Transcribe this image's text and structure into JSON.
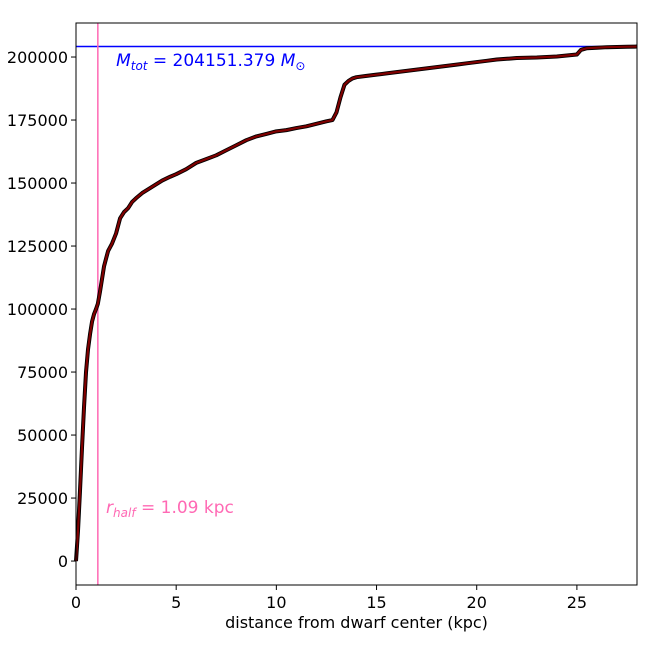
{
  "chart_data": {
    "type": "line",
    "title": "",
    "xlabel": "distance from dwarf center (kpc)",
    "ylabel": "",
    "xlim": [
      0,
      28
    ],
    "ylim": [
      -9500,
      213500
    ],
    "xticks": [
      0,
      5,
      10,
      15,
      20,
      25
    ],
    "yticks": [
      0,
      25000,
      50000,
      75000,
      100000,
      125000,
      150000,
      175000,
      200000
    ],
    "grid": false,
    "series": [
      {
        "name": "",
        "color": "#800000",
        "x": [
          0,
          0.1,
          0.2,
          0.3,
          0.4,
          0.5,
          0.6,
          0.7,
          0.8,
          0.9,
          1.0,
          1.09,
          1.2,
          1.3,
          1.4,
          1.5,
          1.6,
          1.8,
          2.0,
          2.2,
          2.4,
          2.6,
          2.8,
          3.0,
          3.3,
          3.6,
          4.0,
          4.3,
          4.7,
          5.0,
          5.5,
          6.0,
          6.5,
          7.0,
          7.5,
          8.0,
          8.5,
          9.0,
          9.5,
          10.0,
          10.5,
          11.0,
          11.5,
          12.0,
          12.5,
          12.8,
          13.0,
          13.2,
          13.4,
          13.6,
          13.8,
          14.0,
          14.5,
          15.0,
          15.5,
          16.0,
          16.5,
          17.0,
          17.5,
          18.0,
          18.5,
          19.0,
          19.5,
          20.0,
          20.5,
          21.0,
          21.5,
          22.0,
          22.5,
          23.0,
          23.5,
          24.0,
          24.5,
          25.0,
          25.2,
          25.5,
          26.0,
          26.5,
          27.0,
          27.5,
          28.0
        ],
        "values": [
          0,
          12000,
          28000,
          45000,
          61000,
          75000,
          84000,
          90000,
          95000,
          98000,
          100000,
          102076,
          107000,
          112000,
          117000,
          120000,
          123000,
          126000,
          130000,
          136000,
          138500,
          140000,
          142500,
          144000,
          146000,
          147500,
          149500,
          151000,
          152500,
          153500,
          155500,
          158000,
          159500,
          161000,
          163000,
          165000,
          167000,
          168500,
          169500,
          170500,
          171000,
          171800,
          172500,
          173500,
          174500,
          175000,
          178000,
          184000,
          189000,
          190500,
          191500,
          192000,
          192500,
          193000,
          193500,
          194000,
          194500,
          195000,
          195500,
          196000,
          196500,
          197000,
          197500,
          198000,
          198500,
          199000,
          199300,
          199600,
          199700,
          199800,
          200000,
          200200,
          200600,
          201000,
          202800,
          203500,
          203700,
          203900,
          204000,
          204100,
          204151
        ]
      }
    ],
    "reference_lines": [
      {
        "orientation": "horizontal",
        "value": 204151.379,
        "color": "#0000ff"
      },
      {
        "orientation": "vertical",
        "value": 1.09,
        "color": "#ff69b4"
      }
    ],
    "annotations": [
      {
        "main": "M",
        "sub": "tot",
        "rest": " = 204151.379 ",
        "unit": "M",
        "unit_sub": "⊙",
        "color": "#0000ff",
        "x": 2.0,
        "y": 196500
      },
      {
        "main": "r",
        "sub": "half",
        "rest": " = 1.09 kpc",
        "color": "#ff69b4",
        "x": 1.5,
        "y": 19000
      }
    ]
  }
}
